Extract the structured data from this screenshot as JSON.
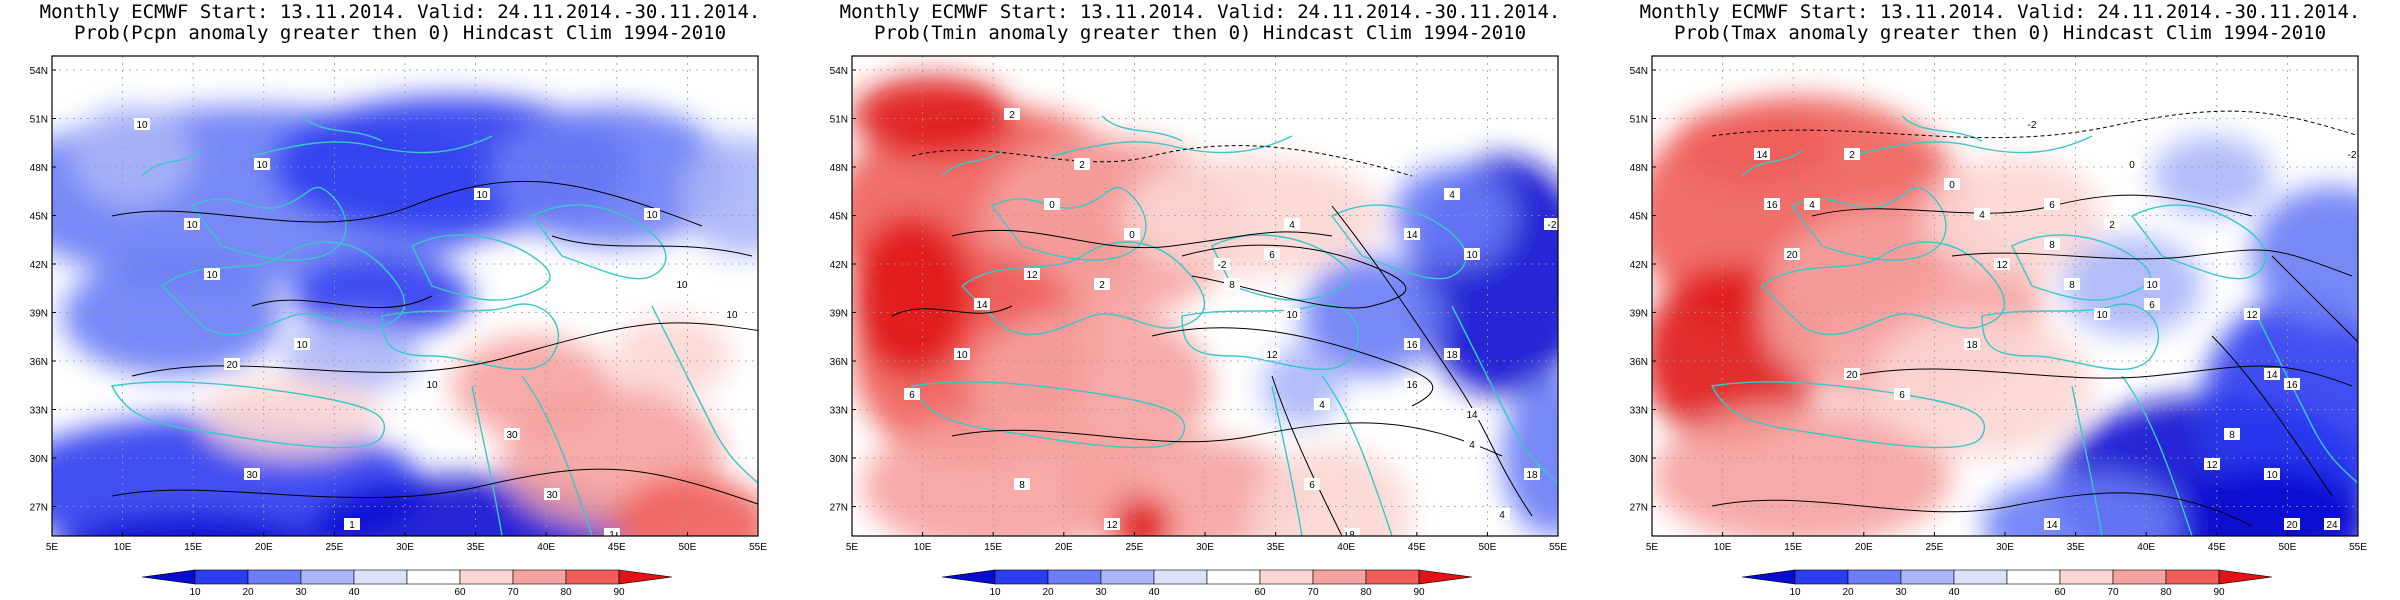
{
  "panels": [
    {
      "title_line1": "Monthly ECMWF Start: 13.11.2014. Valid: 24.11.2014.-30.11.2014.",
      "title_line2": "Prob(Pcpn anomaly greater then 0) Hindcast Clim 1994-2010",
      "variable": "Pcpn",
      "contour_labels": [
        "10",
        "10",
        "10",
        "10",
        "10",
        "10",
        "10",
        "10",
        "20",
        "30",
        "30",
        "30",
        "1",
        "1",
        "1",
        "10",
        "10"
      ]
    },
    {
      "title_line1": "Monthly ECMWF Start: 13.11.2014. Valid: 24.11.2014.-30.11.2014.",
      "title_line2": "Prob(Tmin anomaly greater then 0) Hindcast Clim 1994-2010",
      "variable": "Tmin",
      "contour_labels": [
        "2",
        "2",
        "4",
        "4",
        "-2",
        "0",
        "6",
        "8",
        "10",
        "12",
        "14",
        "16",
        "18",
        "16",
        "14",
        "12",
        "4",
        "6",
        "8",
        "10",
        "12",
        "4",
        "18",
        "16",
        "14",
        "10",
        "4",
        "6",
        "8",
        "2",
        "0",
        "-2"
      ]
    },
    {
      "title_line1": "Monthly ECMWF Start: 13.11.2014. Valid: 24.11.2014.-30.11.2014.",
      "title_line2": "Prob(Tmax anomaly greater then 0) Hindcast Clim 1994-2010",
      "variable": "Tmax",
      "contour_labels": [
        "-2",
        "0",
        "2",
        "4",
        "6",
        "8",
        "10",
        "12",
        "14",
        "16",
        "18",
        "20",
        "6",
        "8",
        "10",
        "12",
        "14",
        "16",
        "18",
        "20",
        "24",
        "20",
        "16",
        "14",
        "12",
        "10",
        "6",
        "8",
        "4",
        "2",
        "0",
        "-2"
      ]
    }
  ],
  "axes": {
    "lat_labels": [
      "54N",
      "51N",
      "48N",
      "45N",
      "42N",
      "39N",
      "36N",
      "33N",
      "30N",
      "27N"
    ],
    "lon_labels": [
      "5E",
      "10E",
      "15E",
      "20E",
      "25E",
      "30E",
      "35E",
      "40E",
      "45E",
      "50E",
      "55E"
    ]
  },
  "colorbar": {
    "labels": [
      "10",
      "20",
      "30",
      "40",
      "60",
      "70",
      "80",
      "90"
    ],
    "colors": [
      "#0a0ad2",
      "#2c3cf0",
      "#6a7cf6",
      "#aab6f8",
      "#dde2fb",
      "#ffffff",
      "#fbd6d4",
      "#f6a2a0",
      "#ef5e5a",
      "#e01414"
    ]
  },
  "colors": {
    "coast": "#38c8c8",
    "contour": "#000000",
    "background": "#ffffff"
  }
}
